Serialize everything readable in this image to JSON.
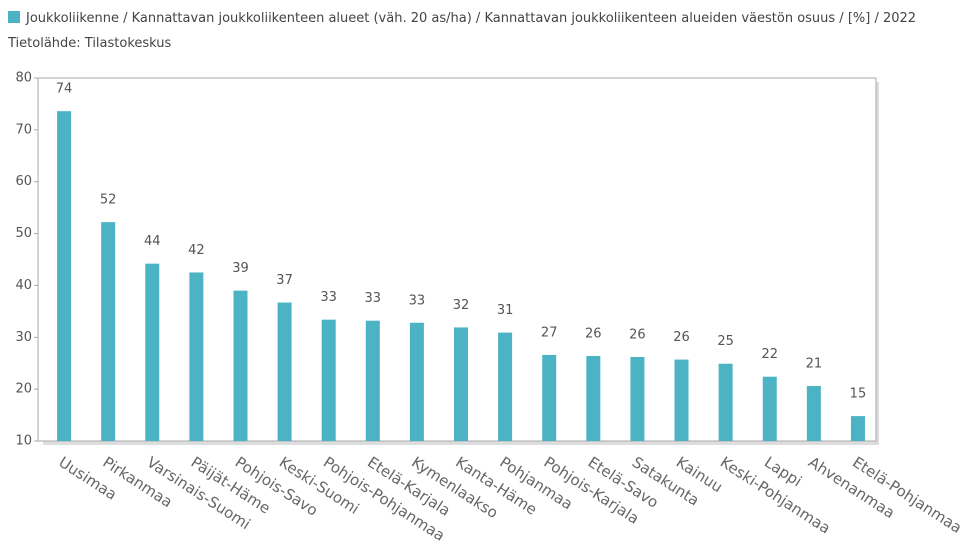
{
  "chart_data": {
    "type": "bar",
    "categories": [
      "Uusimaa",
      "Pirkanmaa",
      "Varsinais-Suomi",
      "Päijät-Häme",
      "Pohjois-Savo",
      "Keski-Suomi",
      "Pohjois-Pohjanmaa",
      "Etelä-Karjala",
      "Kymenlaakso",
      "Kanta-Häme",
      "Pohjanmaa",
      "Pohjois-Karjala",
      "Etelä-Savo",
      "Satakunta",
      "Kainuu",
      "Keski-Pohjanmaa",
      "Lappi",
      "Ahvenanmaa",
      "Etelä-Pohjanmaa"
    ],
    "series": [
      {
        "name": "Joukkoliikenne / Kannattavan joukkoliikenteen alueet (väh. 20 as/ha) / Kannattavan joukkoliikenteen alueiden väestön osuus / [%] / 2022 Tietolähde: Tilastokeskus",
        "color": "#4bb3c4",
        "values": [
          73.6,
          52.2,
          44.2,
          42.5,
          39.0,
          36.7,
          33.4,
          33.2,
          32.8,
          31.9,
          30.9,
          26.6,
          26.4,
          26.2,
          25.7,
          24.9,
          22.4,
          20.6,
          14.8
        ],
        "value_labels": [
          "74",
          "52",
          "44",
          "42",
          "39",
          "37",
          "33",
          "33",
          "33",
          "32",
          "31",
          "27",
          "26",
          "26",
          "26",
          "25",
          "22",
          "21",
          "15"
        ]
      }
    ],
    "ylim": [
      10,
      80
    ],
    "yticks": [
      10,
      20,
      30,
      40,
      50,
      60,
      70,
      80
    ],
    "grid": false
  }
}
